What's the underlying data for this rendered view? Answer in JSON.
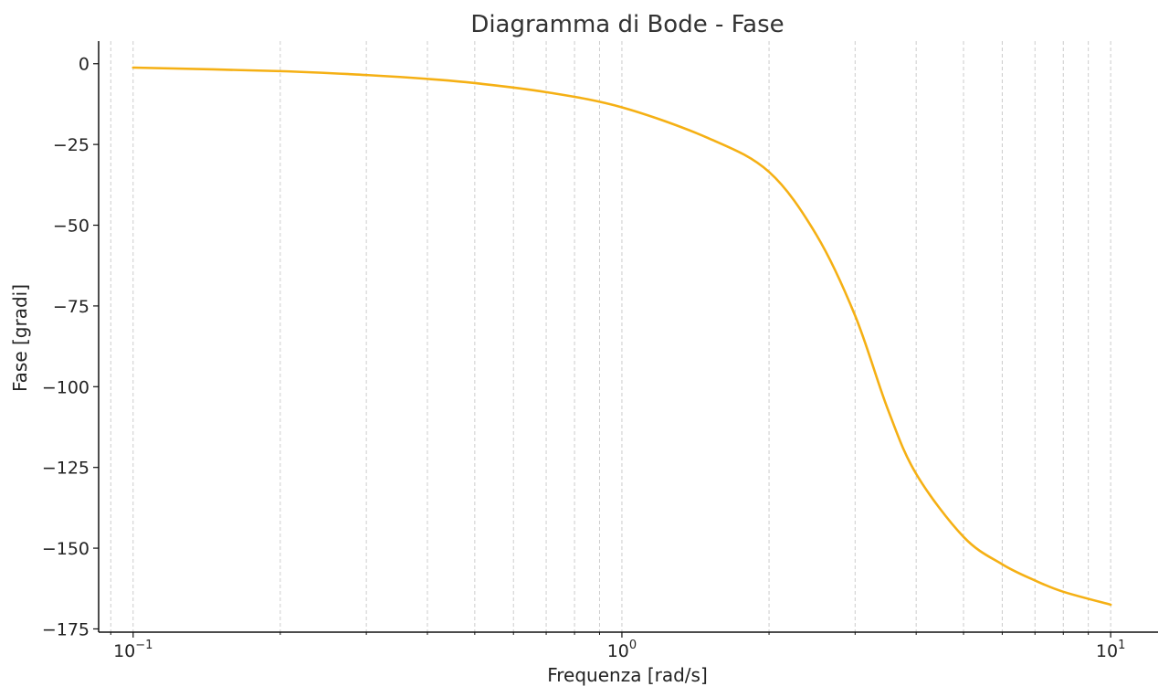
{
  "chart_data": {
    "type": "line",
    "title": "Diagramma di Bode - Fase",
    "xlabel": "Frequenza [rad/s]",
    "ylabel": "Fase [gradi]",
    "xscale": "log",
    "xlim": [
      0.085,
      12.5
    ],
    "ylim": [
      -176,
      7
    ],
    "grid": "vertical, dashed, major and minor",
    "x_ticks": [
      {
        "base": "10",
        "exp": "−1",
        "value": 0.1
      },
      {
        "base": "10",
        "exp": "0",
        "value": 1
      },
      {
        "base": "10",
        "exp": "1",
        "value": 10
      }
    ],
    "y_ticks": [
      {
        "label": "0",
        "value": 0
      },
      {
        "label": "−25",
        "value": -25
      },
      {
        "label": "−50",
        "value": -50
      },
      {
        "label": "−75",
        "value": -75
      },
      {
        "label": "−100",
        "value": -100
      },
      {
        "label": "−125",
        "value": -125
      },
      {
        "label": "−150",
        "value": -150
      },
      {
        "label": "−175",
        "value": -175
      }
    ],
    "series": [
      {
        "color": "#f5b014",
        "x": [
          0.1,
          0.2,
          0.3,
          0.4,
          0.5,
          0.7,
          1.0,
          1.5,
          2.0,
          2.5,
          3.0,
          3.5,
          4.0,
          5.0,
          6.0,
          7.0,
          8.0,
          10.0
        ],
        "y": [
          -1.2,
          -2.3,
          -3.5,
          -4.7,
          -6.0,
          -8.8,
          -13.5,
          -23.0,
          -33.5,
          -53.0,
          -78.0,
          -107.0,
          -127.0,
          -146.5,
          -155.0,
          -160.0,
          -163.5,
          -167.5
        ]
      }
    ]
  }
}
